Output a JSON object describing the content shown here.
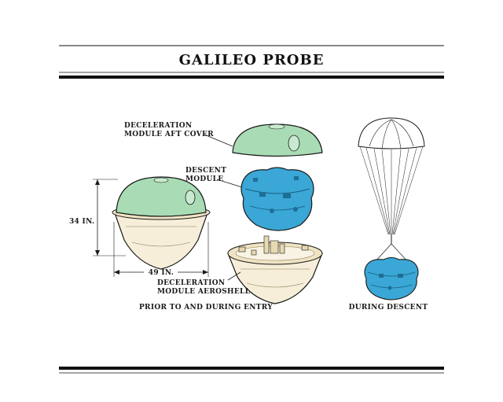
{
  "title": "GALILEO PROBE",
  "labels": {
    "aft_cover": [
      "DECELERATION",
      "MODULE AFT COVER"
    ],
    "descent_module": [
      "DESCENT",
      "MODULE"
    ],
    "aeroshell": [
      "DECELERATION",
      "MODULE AEROSHELL"
    ],
    "height": "34 IN.",
    "width": "49 IN.",
    "caption_left": "PRIOR TO AND DURING ENTRY",
    "caption_right": "DURING DESCENT"
  },
  "colors": {
    "aft_cover_green": "#a9dcb4",
    "descent_blue": "#3aa7d6",
    "aeroshell_cream": "#f6eed8",
    "outline": "#1a1a1a",
    "rule": "#111111"
  },
  "icons": {
    "parachute": "parachute-icon",
    "probe": "probe-icon"
  }
}
